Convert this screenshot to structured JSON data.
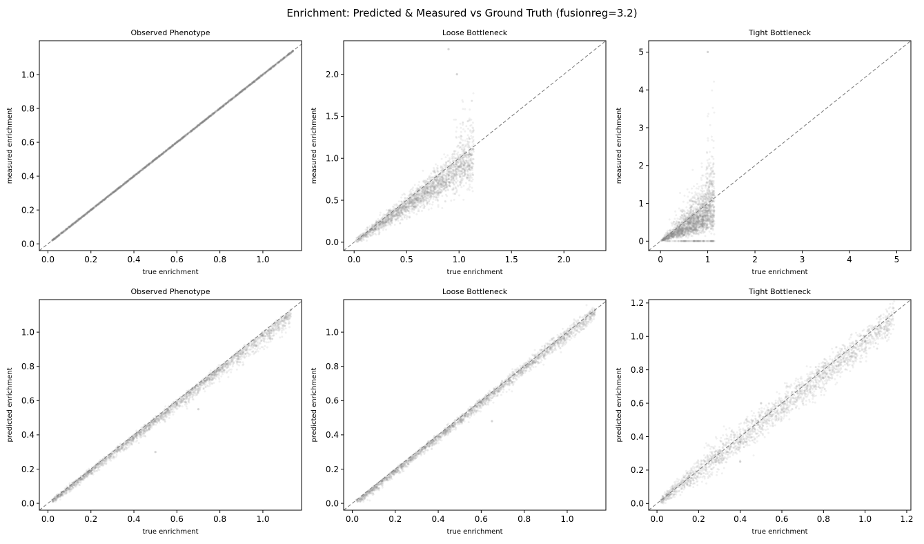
{
  "figure": {
    "suptitle": "Enrichment: Predicted & Measured vs Ground Truth (fusionreg=3.2)"
  },
  "style": {
    "point_color": "#808080",
    "diagonal_color": "#808080",
    "axes_color": "#000000",
    "background": "#ffffff"
  },
  "chart_data": [
    {
      "type": "scatter",
      "title": "Observed Phenotype",
      "xlabel": "true enrichment",
      "ylabel": "measured enrichment",
      "xlim": [
        -0.04,
        1.18
      ],
      "ylim": [
        -0.04,
        1.2
      ],
      "xticks": [
        0.0,
        0.2,
        0.4,
        0.6,
        0.8,
        1.0
      ],
      "yticks": [
        0.0,
        0.2,
        0.4,
        0.6,
        0.8,
        1.0
      ],
      "tick_format": 1,
      "diagonal": true,
      "grid": false,
      "legend": "none",
      "x_range": [
        0.02,
        1.14
      ],
      "points": [
        [
          0.02,
          0.02
        ],
        [
          0.1,
          0.1
        ],
        [
          0.2,
          0.2
        ],
        [
          0.3,
          0.3
        ],
        [
          0.4,
          0.4
        ],
        [
          0.5,
          0.5
        ],
        [
          0.6,
          0.6
        ],
        [
          0.7,
          0.7
        ],
        [
          0.8,
          0.8
        ],
        [
          0.9,
          0.9
        ],
        [
          1.0,
          1.0
        ],
        [
          1.1,
          1.1
        ],
        [
          1.14,
          1.14
        ]
      ]
    },
    {
      "type": "scatter",
      "title": "Loose Bottleneck",
      "xlabel": "true enrichment",
      "ylabel": "measured enrichment",
      "xlim": [
        -0.1,
        2.4
      ],
      "ylim": [
        -0.1,
        2.4
      ],
      "xticks": [
        0.0,
        0.5,
        1.0,
        1.5,
        2.0
      ],
      "yticks": [
        0.0,
        0.5,
        1.0,
        1.5,
        2.0
      ],
      "tick_format": 1,
      "diagonal": true,
      "grid": false,
      "legend": "none",
      "x_range": [
        0.02,
        1.14
      ],
      "points": [
        [
          0.02,
          0.02
        ],
        [
          0.1,
          0.07
        ],
        [
          0.2,
          0.16
        ],
        [
          0.3,
          0.24
        ],
        [
          0.4,
          0.33
        ],
        [
          0.5,
          0.42
        ],
        [
          0.6,
          0.5
        ],
        [
          0.7,
          0.6
        ],
        [
          0.8,
          0.7
        ],
        [
          0.9,
          0.8
        ],
        [
          1.0,
          0.9
        ],
        [
          1.1,
          1.05
        ],
        [
          0.98,
          2.0
        ],
        [
          0.9,
          2.3
        ]
      ]
    },
    {
      "type": "scatter",
      "title": "Tight Bottleneck",
      "xlabel": "true enrichment",
      "ylabel": "measured enrichment",
      "xlim": [
        -0.25,
        5.3
      ],
      "ylim": [
        -0.25,
        5.3
      ],
      "xticks": [
        0,
        1,
        2,
        3,
        4,
        5
      ],
      "yticks": [
        0,
        1,
        2,
        3,
        4,
        5
      ],
      "tick_format": 0,
      "diagonal": true,
      "grid": false,
      "legend": "none",
      "x_range": [
        0.02,
        1.14
      ],
      "points": [
        [
          0.02,
          0.02
        ],
        [
          0.2,
          0.2
        ],
        [
          0.4,
          0.35
        ],
        [
          0.6,
          0.5
        ],
        [
          0.8,
          0.6
        ],
        [
          1.0,
          0.8
        ],
        [
          1.1,
          1.5
        ],
        [
          1.0,
          5.0
        ],
        [
          0.5,
          0.0
        ],
        [
          1.1,
          0.0
        ]
      ]
    },
    {
      "type": "scatter",
      "title": "Observed Phenotype",
      "xlabel": "true enrichment",
      "ylabel": "predicted enrichment",
      "xlim": [
        -0.04,
        1.18
      ],
      "ylim": [
        -0.04,
        1.19
      ],
      "xticks": [
        0.0,
        0.2,
        0.4,
        0.6,
        0.8,
        1.0
      ],
      "yticks": [
        0.0,
        0.2,
        0.4,
        0.6,
        0.8,
        1.0
      ],
      "tick_format": 1,
      "diagonal": true,
      "grid": false,
      "legend": "none",
      "x_range": [
        0.02,
        1.14
      ],
      "points": [
        [
          0.02,
          0.02
        ],
        [
          0.2,
          0.19
        ],
        [
          0.4,
          0.38
        ],
        [
          0.6,
          0.58
        ],
        [
          0.8,
          0.78
        ],
        [
          1.0,
          0.98
        ],
        [
          1.13,
          1.13
        ],
        [
          0.5,
          0.3
        ],
        [
          0.7,
          0.55
        ]
      ]
    },
    {
      "type": "scatter",
      "title": "Loose Bottleneck",
      "xlabel": "true enrichment",
      "ylabel": "predicted enrichment",
      "xlim": [
        -0.04,
        1.18
      ],
      "ylim": [
        -0.04,
        1.19
      ],
      "xticks": [
        0.0,
        0.2,
        0.4,
        0.6,
        0.8,
        1.0
      ],
      "yticks": [
        0.0,
        0.2,
        0.4,
        0.6,
        0.8,
        1.0
      ],
      "tick_format": 1,
      "diagonal": true,
      "grid": false,
      "legend": "none",
      "x_range": [
        0.02,
        1.14
      ],
      "points": [
        [
          0.02,
          0.02
        ],
        [
          0.2,
          0.19
        ],
        [
          0.4,
          0.39
        ],
        [
          0.6,
          0.59
        ],
        [
          0.8,
          0.79
        ],
        [
          1.0,
          0.99
        ],
        [
          1.13,
          1.13
        ],
        [
          0.65,
          0.48
        ]
      ]
    },
    {
      "type": "scatter",
      "title": "Tight Bottleneck",
      "xlabel": "true enrichment",
      "ylabel": "predicted enrichment",
      "xlim": [
        -0.04,
        1.22
      ],
      "ylim": [
        -0.04,
        1.22
      ],
      "xticks": [
        0.0,
        0.2,
        0.4,
        0.6,
        0.8,
        1.0,
        1.2
      ],
      "yticks": [
        0.0,
        0.2,
        0.4,
        0.6,
        0.8,
        1.0,
        1.2
      ],
      "tick_format": 1,
      "diagonal": true,
      "grid": false,
      "legend": "none",
      "x_range": [
        0.02,
        1.14
      ],
      "points": [
        [
          0.02,
          0.02
        ],
        [
          0.2,
          0.18
        ],
        [
          0.4,
          0.37
        ],
        [
          0.6,
          0.56
        ],
        [
          0.8,
          0.75
        ],
        [
          1.0,
          0.97
        ],
        [
          1.14,
          1.14
        ],
        [
          0.5,
          0.6
        ],
        [
          0.4,
          0.25
        ]
      ]
    }
  ]
}
